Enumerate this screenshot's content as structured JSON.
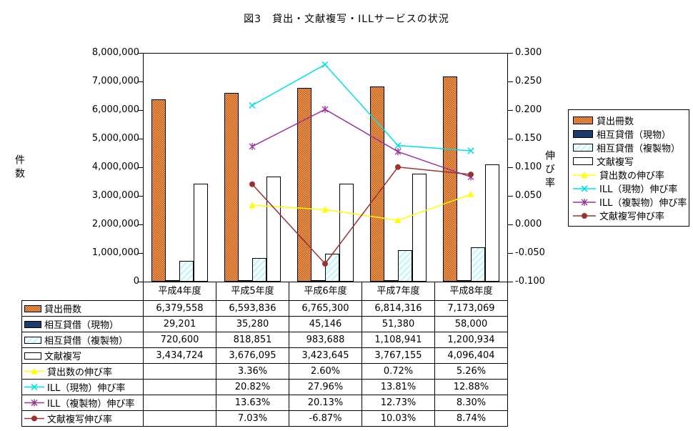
{
  "title": "図3　貸出・文献複写・ILLサービスの状況",
  "chart_data": {
    "type": "combo-bar-line",
    "categories": [
      "平成4年度",
      "平成5年度",
      "平成6年度",
      "平成7年度",
      "平成8年度"
    ],
    "bar_series": [
      {
        "name": "貸出冊数",
        "values": [
          6379558,
          6593836,
          6765300,
          6814316,
          7173069
        ],
        "fill": "checker",
        "color": "#F7A843",
        "color2": "#BB5533"
      },
      {
        "name": "相互貸借（現物）",
        "values": [
          29201,
          35280,
          45146,
          51380,
          58000
        ],
        "fill": "solid",
        "color": "#1B3B6B"
      },
      {
        "name": "相互貸借（複製物）",
        "values": [
          720600,
          818851,
          983688,
          1108941,
          1200934
        ],
        "fill": "stripes",
        "color": "#CDF6F8",
        "color2": "#FFFFFF"
      },
      {
        "name": "文献複写",
        "values": [
          3434724,
          3676095,
          3423645,
          3767155,
          4096404
        ],
        "fill": "solid",
        "color": "#FFFFFF"
      }
    ],
    "line_series": [
      {
        "name": "貸出数の伸び率",
        "values": [
          null,
          0.0336,
          0.026,
          0.0072,
          0.0526
        ],
        "color": "#FFFF00",
        "marker": "triangle"
      },
      {
        "name": "ILL（現物）伸び率",
        "values": [
          null,
          0.2082,
          0.2796,
          0.1381,
          0.1288
        ],
        "color": "#00E0E6",
        "marker": "x"
      },
      {
        "name": "ILL（複製物）伸び率",
        "values": [
          null,
          0.1363,
          0.2013,
          0.1273,
          0.083
        ],
        "color": "#993399",
        "marker": "asterisk"
      },
      {
        "name": "文献複写伸び率",
        "values": [
          null,
          0.0703,
          -0.0687,
          0.1003,
          0.0874
        ],
        "color": "#993333",
        "marker": "circle"
      }
    ],
    "y_left": {
      "label": "件数",
      "min": 0,
      "max": 8000000,
      "step": 1000000
    },
    "y_right": {
      "label": "伸び率",
      "min": -0.1,
      "max": 0.3,
      "step": 0.05,
      "decimals": 3
    },
    "grid": false,
    "legend_position": "right"
  },
  "table": {
    "header": [
      "平成4年度",
      "平成5年度",
      "平成6年度",
      "平成7年度",
      "平成8年度"
    ],
    "rows": [
      {
        "label": "貸出冊数",
        "values": [
          "6,379,558",
          "6,593,836",
          "6,765,300",
          "6,814,316",
          "7,173,069"
        ]
      },
      {
        "label": "相互貸借（現物）",
        "values": [
          "29,201",
          "35,280",
          "45,146",
          "51,380",
          "58,000"
        ]
      },
      {
        "label": "相互貸借（複製物）",
        "values": [
          "720,600",
          "818,851",
          "983,688",
          "1,108,941",
          "1,200,934"
        ]
      },
      {
        "label": "文献複写",
        "values": [
          "3,434,724",
          "3,676,095",
          "3,423,645",
          "3,767,155",
          "4,096,404"
        ]
      },
      {
        "label": "貸出数の伸び率",
        "values": [
          "",
          "3.36%",
          "2.60%",
          "0.72%",
          "5.26%"
        ]
      },
      {
        "label": "ILL（現物）伸び率",
        "values": [
          "",
          "20.82%",
          "27.96%",
          "13.81%",
          "12.88%"
        ]
      },
      {
        "label": "ILL（複製物）伸び率",
        "values": [
          "",
          "13.63%",
          "20.13%",
          "12.73%",
          "8.30%"
        ]
      },
      {
        "label": "文献複写伸び率",
        "values": [
          "",
          "7.03%",
          "-6.87%",
          "10.03%",
          "8.74%"
        ]
      }
    ]
  }
}
